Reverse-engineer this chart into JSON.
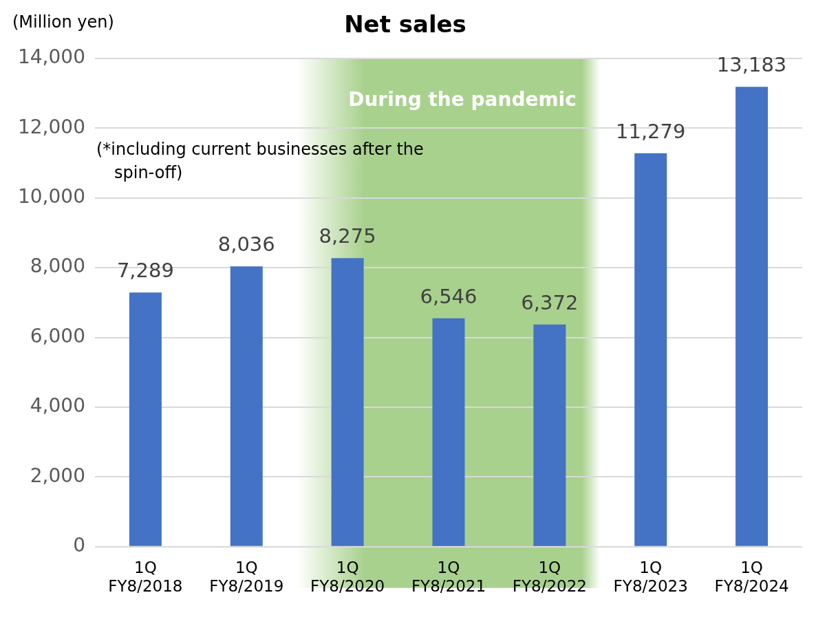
{
  "chart_data": {
    "type": "bar",
    "title": "Net sales",
    "ylabel": "(Million yen)",
    "categories": [
      "1Q\nFY8/2018",
      "1Q\nFY8/2019",
      "1Q\nFY8/2020",
      "1Q\nFY8/2021",
      "1Q\nFY8/2022",
      "1Q\nFY8/2023",
      "1Q\nFY8/2024"
    ],
    "values": [
      7289,
      8036,
      8275,
      6546,
      6372,
      11279,
      13183
    ],
    "color": "#4472c4",
    "value_labels": [
      "7,289",
      "8,036",
      "8,275",
      "6,546",
      "6,372",
      "11,279",
      "13,183"
    ],
    "ylim": [
      0,
      14000
    ],
    "yticks": [
      0,
      {
        "value": 2000,
        "label": "2,000"
      },
      {
        "value": 4000,
        "label": "4,000"
      },
      {
        "value": 6000,
        "label": "6,000"
      },
      {
        "value": 8000,
        "label": "8,000"
      },
      {
        "value": 10000,
        "label": "10,000"
      },
      {
        "value": 12000,
        "label": "12,000"
      },
      {
        "value": 14000,
        "label": "14,000"
      }
    ],
    "grid": "y",
    "legend": false,
    "bands": [
      {
        "axis": "x",
        "from": "1Q\nFY8/2020",
        "to": "1Q\nFY8/2022",
        "label": "During the pandemic",
        "color": "#a9d18e"
      }
    ],
    "annotations": [
      "(*including current businesses after the spin-off)"
    ]
  }
}
